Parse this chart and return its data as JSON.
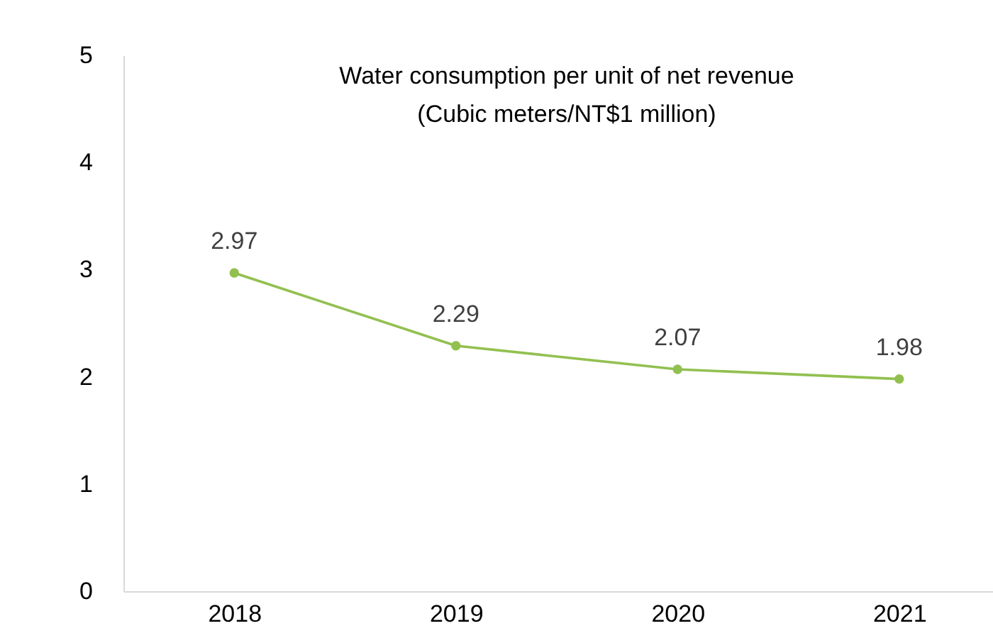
{
  "chart_data": {
    "type": "line",
    "title": "Water consumption per unit of net revenue",
    "subtitle": "(Cubic meters/NT$1 million)",
    "categories": [
      "2018",
      "2019",
      "2020",
      "2021"
    ],
    "values": [
      2.97,
      2.29,
      2.07,
      1.98
    ],
    "color": "#92c050",
    "marker": "circle",
    "data_labels": true,
    "ylim": [
      0,
      5
    ],
    "yticks": [
      0,
      1,
      2,
      3,
      4,
      5
    ]
  }
}
